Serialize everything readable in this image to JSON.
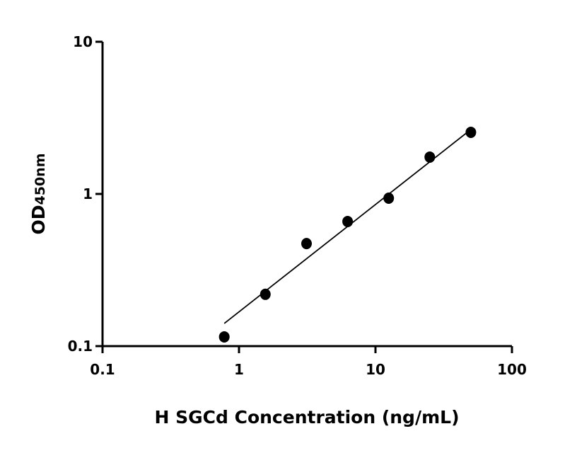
{
  "chart_data": {
    "type": "scatter",
    "title": "",
    "xlabel": "H SGCd Concentration (ng/mL)",
    "ylabel_main": "OD",
    "ylabel_sub": "450nm",
    "x_scale": "log",
    "y_scale": "log",
    "xlim": [
      0.1,
      100
    ],
    "ylim": [
      0.1,
      10
    ],
    "x_ticks": [
      0.1,
      1,
      10,
      100
    ],
    "x_tick_labels": [
      "0.1",
      "1",
      "10",
      "100"
    ],
    "y_ticks": [
      0.1,
      1,
      10
    ],
    "y_tick_labels": [
      "0.1",
      "1",
      "10"
    ],
    "grid": false,
    "series": [
      {
        "x": [
          0.78,
          1.56,
          3.125,
          6.25,
          12.5,
          25,
          50
        ],
        "y": [
          0.115,
          0.219,
          0.472,
          0.659,
          0.938,
          1.746,
          2.54
        ],
        "color": "#000000"
      }
    ],
    "fit_line": {
      "x": [
        0.78,
        50
      ],
      "y": [
        0.141,
        2.65
      ],
      "color": "#000000"
    }
  }
}
